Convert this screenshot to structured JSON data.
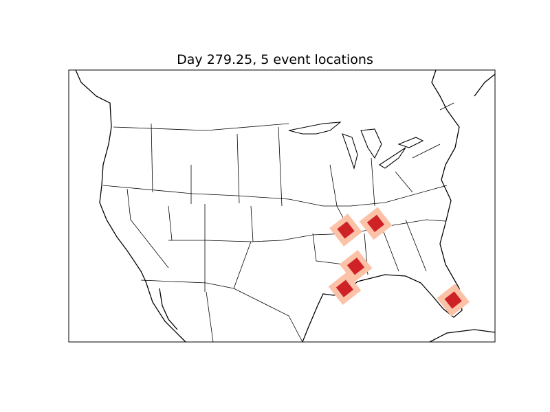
{
  "title": "Day 279.25, 5 event locations",
  "colors": {
    "event_inner": "#cf2227",
    "event_outer": "#fcc2a8",
    "coastline": "#000000",
    "borders": "#000000"
  },
  "map": {
    "projection": "lambert-conformal",
    "region": "contiguous United States"
  },
  "events": [
    {
      "lon": -90.2,
      "lat": 35.0
    },
    {
      "lon": -87.5,
      "lat": 35.8
    },
    {
      "lon": -89.3,
      "lat": 30.6
    },
    {
      "lon": -90.3,
      "lat": 27.9
    },
    {
      "lon": -80.5,
      "lat": 26.5
    }
  ]
}
